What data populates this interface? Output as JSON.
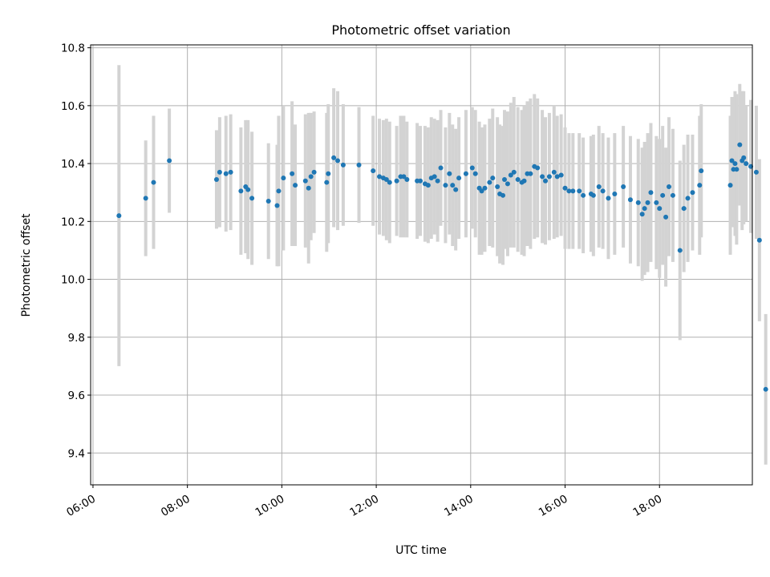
{
  "chart_data": {
    "type": "scatter",
    "title": "Photometric offset variation",
    "xlabel": "UTC time",
    "ylabel": "Photometric offset",
    "x_unit": "hours (UTC)",
    "xlim": [
      "05:57",
      "19:58"
    ],
    "ylim": [
      9.29,
      10.81
    ],
    "x_ticks": [
      "06:00",
      "08:00",
      "10:00",
      "12:00",
      "14:00",
      "16:00",
      "18:00"
    ],
    "y_ticks": [
      "9.4",
      "9.6",
      "9.8",
      "10.0",
      "10.2",
      "10.4",
      "10.6",
      "10.8"
    ],
    "grid": true,
    "colors": {
      "points": "#1f77b4",
      "errorbars": "#d3d3d3",
      "grid": "#b0b0b0"
    },
    "points": [
      [
        "06:33",
        10.22,
        0.52
      ],
      [
        "07:07",
        10.28,
        0.2
      ],
      [
        "07:17",
        10.335,
        0.23
      ],
      [
        "07:37",
        10.41,
        0.18
      ],
      [
        "08:37",
        10.345,
        0.17
      ],
      [
        "08:41",
        10.37,
        0.19
      ],
      [
        "08:49",
        10.365,
        0.2
      ],
      [
        "08:55",
        10.37,
        0.2
      ],
      [
        "09:08",
        10.305,
        0.22
      ],
      [
        "09:14",
        10.32,
        0.23
      ],
      [
        "09:17",
        10.31,
        0.24
      ],
      [
        "09:22",
        10.28,
        0.23
      ],
      [
        "09:43",
        10.27,
        0.2
      ],
      [
        "09:54",
        10.255,
        0.21
      ],
      [
        "09:56",
        10.305,
        0.26
      ],
      [
        "10:02",
        10.35,
        0.25
      ],
      [
        "10:13",
        10.365,
        0.25
      ],
      [
        "10:17",
        10.325,
        0.21
      ],
      [
        "10:30",
        10.34,
        0.23
      ],
      [
        "10:34",
        10.315,
        0.26
      ],
      [
        "10:37",
        10.355,
        0.22
      ],
      [
        "10:41",
        10.37,
        0.21
      ],
      [
        "10:57",
        10.335,
        0.24
      ],
      [
        "10:59",
        10.365,
        0.24
      ],
      [
        "11:06",
        10.42,
        0.24
      ],
      [
        "11:11",
        10.41,
        0.24
      ],
      [
        "11:18",
        10.395,
        0.21
      ],
      [
        "11:38",
        10.395,
        0.2
      ],
      [
        "11:56",
        10.375,
        0.19
      ],
      [
        "12:04",
        10.355,
        0.2
      ],
      [
        "12:09",
        10.35,
        0.2
      ],
      [
        "12:13",
        10.345,
        0.21
      ],
      [
        "12:17",
        10.335,
        0.21
      ],
      [
        "12:26",
        10.34,
        0.19
      ],
      [
        "12:31",
        10.355,
        0.21
      ],
      [
        "12:35",
        10.355,
        0.21
      ],
      [
        "12:39",
        10.345,
        0.2
      ],
      [
        "12:52",
        10.34,
        0.2
      ],
      [
        "12:56",
        10.34,
        0.19
      ],
      [
        "13:02",
        10.33,
        0.2
      ],
      [
        "13:06",
        10.325,
        0.2
      ],
      [
        "13:10",
        10.35,
        0.21
      ],
      [
        "13:14",
        10.355,
        0.2
      ],
      [
        "13:18",
        10.34,
        0.21
      ],
      [
        "13:22",
        10.385,
        0.2
      ],
      [
        "13:28",
        10.325,
        0.2
      ],
      [
        "13:33",
        10.365,
        0.21
      ],
      [
        "13:37",
        10.325,
        0.21
      ],
      [
        "13:41",
        10.31,
        0.21
      ],
      [
        "13:45",
        10.35,
        0.21
      ],
      [
        "13:54",
        10.365,
        0.22
      ],
      [
        "14:02",
        10.385,
        0.21
      ],
      [
        "14:06",
        10.365,
        0.22
      ],
      [
        "14:11",
        10.315,
        0.23
      ],
      [
        "14:14",
        10.305,
        0.22
      ],
      [
        "14:18",
        10.315,
        0.22
      ],
      [
        "14:24",
        10.335,
        0.22
      ],
      [
        "14:28",
        10.35,
        0.24
      ],
      [
        "14:34",
        10.32,
        0.24
      ],
      [
        "14:37",
        10.295,
        0.24
      ],
      [
        "14:41",
        10.29,
        0.24
      ],
      [
        "14:43",
        10.345,
        0.24
      ],
      [
        "14:47",
        10.33,
        0.25
      ],
      [
        "14:51",
        10.36,
        0.25
      ],
      [
        "14:55",
        10.37,
        0.26
      ],
      [
        "15:00",
        10.345,
        0.25
      ],
      [
        "15:05",
        10.335,
        0.25
      ],
      [
        "15:08",
        10.34,
        0.26
      ],
      [
        "15:12",
        10.365,
        0.25
      ],
      [
        "15:16",
        10.365,
        0.26
      ],
      [
        "15:21",
        10.39,
        0.25
      ],
      [
        "15:25",
        10.385,
        0.24
      ],
      [
        "15:31",
        10.355,
        0.23
      ],
      [
        "15:35",
        10.34,
        0.22
      ],
      [
        "15:40",
        10.355,
        0.22
      ],
      [
        "15:46",
        10.37,
        0.23
      ],
      [
        "15:50",
        10.355,
        0.21
      ],
      [
        "15:55",
        10.36,
        0.21
      ],
      [
        "16:00",
        10.315,
        0.21
      ],
      [
        "16:05",
        10.305,
        0.2
      ],
      [
        "16:10",
        10.305,
        0.2
      ],
      [
        "16:18",
        10.305,
        0.2
      ],
      [
        "16:23",
        10.29,
        0.2
      ],
      [
        "16:33",
        10.295,
        0.2
      ],
      [
        "16:36",
        10.29,
        0.21
      ],
      [
        "16:43",
        10.32,
        0.21
      ],
      [
        "16:48",
        10.305,
        0.2
      ],
      [
        "16:55",
        10.28,
        0.21
      ],
      [
        "17:03",
        10.295,
        0.21
      ],
      [
        "17:14",
        10.32,
        0.21
      ],
      [
        "17:23",
        10.275,
        0.22
      ],
      [
        "17:33",
        10.265,
        0.22
      ],
      [
        "17:38",
        10.225,
        0.23
      ],
      [
        "17:41",
        10.245,
        0.23
      ],
      [
        "17:45",
        10.265,
        0.24
      ],
      [
        "17:49",
        10.3,
        0.24
      ],
      [
        "17:56",
        10.265,
        0.23
      ],
      [
        "18:00",
        10.245,
        0.24
      ],
      [
        "18:04",
        10.29,
        0.24
      ],
      [
        "18:08",
        10.215,
        0.24
      ],
      [
        "18:12",
        10.32,
        0.24
      ],
      [
        "18:17",
        10.29,
        0.23
      ],
      [
        "18:26",
        10.1,
        0.31
      ],
      [
        "18:31",
        10.245,
        0.22
      ],
      [
        "18:36",
        10.28,
        0.22
      ],
      [
        "18:42",
        10.3,
        0.2
      ],
      [
        "18:51",
        10.325,
        0.24
      ],
      [
        "18:53",
        10.375,
        0.23
      ],
      [
        "19:30",
        10.325,
        0.24
      ],
      [
        "19:32",
        10.41,
        0.22
      ],
      [
        "19:34",
        10.38,
        0.2
      ],
      [
        "19:36",
        10.4,
        0.25
      ],
      [
        "19:38",
        10.38,
        0.26
      ],
      [
        "19:42",
        10.465,
        0.21
      ],
      [
        "19:45",
        10.41,
        0.24
      ],
      [
        "19:47",
        10.42,
        0.23
      ],
      [
        "19:50",
        10.4,
        0.2
      ],
      [
        "19:56",
        10.39,
        0.23
      ],
      [
        "20:03",
        10.37,
        0.23
      ],
      [
        "20:07",
        10.135,
        0.28
      ],
      [
        "20:15",
        9.62,
        0.26
      ]
    ]
  }
}
